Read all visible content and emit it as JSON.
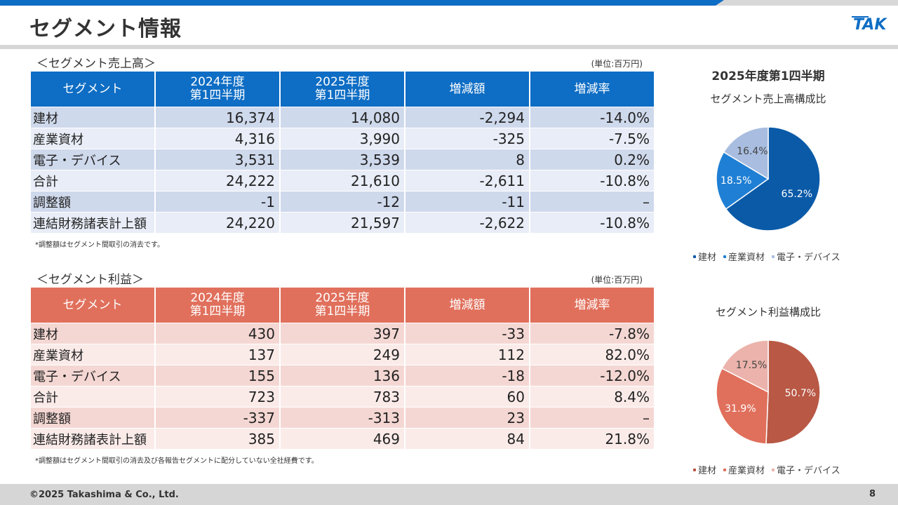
{
  "header": {
    "title": "セグメント情報",
    "logo_text": "TAK"
  },
  "sales": {
    "label": "＜セグメント売上高＞",
    "unit": "(単位:百万円)",
    "columns": [
      "セグメント",
      "2024年度\n第1四半期",
      "2025年度\n第1四半期",
      "増減額",
      "増減率"
    ],
    "rows": [
      [
        "建材",
        "16,374",
        "14,080",
        "-2,294",
        "-14.0%"
      ],
      [
        "産業資材",
        "4,316",
        "3,990",
        "-325",
        "-7.5%"
      ],
      [
        "電子・デバイス",
        "3,531",
        "3,539",
        "8",
        "0.2%"
      ],
      [
        "合計",
        "24,222",
        "21,610",
        "-2,611",
        "-10.8%"
      ],
      [
        "調整額",
        "-1",
        "-12",
        "-11",
        "–"
      ],
      [
        "連結財務諸表計上額",
        "24,220",
        "21,597",
        "-2,622",
        "-10.8%"
      ]
    ],
    "note": "*調整額はセグメント間取引の消去です。"
  },
  "profit": {
    "label": "＜セグメント利益＞",
    "unit": "(単位:百万円)",
    "columns": [
      "セグメント",
      "2024年度\n第1四半期",
      "2025年度\n第1四半期",
      "増減額",
      "増減率"
    ],
    "rows": [
      [
        "建材",
        "430",
        "397",
        "-33",
        "-7.8%"
      ],
      [
        "産業資材",
        "137",
        "249",
        "112",
        "82.0%"
      ],
      [
        "電子・デバイス",
        "155",
        "136",
        "-18",
        "-12.0%"
      ],
      [
        "合計",
        "723",
        "783",
        "60",
        "8.4%"
      ],
      [
        "調整額",
        "-337",
        "-313",
        "23",
        "–"
      ],
      [
        "連結財務諸表計上額",
        "385",
        "469",
        "84",
        "21.8%"
      ]
    ],
    "note": "*調整額はセグメント間取引の消去及び各報告セグメントに配分していない全社経費です。"
  },
  "chart_data": [
    {
      "type": "pie",
      "title": "2025年度第1四半期",
      "subtitle": "セグメント売上高構成比",
      "categories": [
        "建材",
        "産業資材",
        "電子・デバイス"
      ],
      "values": [
        65.2,
        18.5,
        16.4
      ],
      "labels": [
        "65.2%",
        "18.5%",
        "16.4%"
      ],
      "colors": [
        "#0a5aa8",
        "#1f7fd4",
        "#a8bde0"
      ],
      "label_colors": [
        "#ffffff",
        "#ffffff",
        "#444444"
      ],
      "legend": "bottom"
    },
    {
      "type": "pie",
      "title": "",
      "subtitle": "セグメント利益構成比",
      "categories": [
        "建材",
        "産業資材",
        "電子・デバイス"
      ],
      "values": [
        50.7,
        31.9,
        17.5
      ],
      "labels": [
        "50.7%",
        "31.9%",
        "17.5%"
      ],
      "colors": [
        "#b85845",
        "#e0705c",
        "#ebb3ab"
      ],
      "label_colors": [
        "#ffffff",
        "#ffffff",
        "#444444"
      ],
      "legend": "bottom"
    }
  ],
  "footer": {
    "copyright": "©2025 Takashima & Co., Ltd.",
    "page": "8"
  }
}
